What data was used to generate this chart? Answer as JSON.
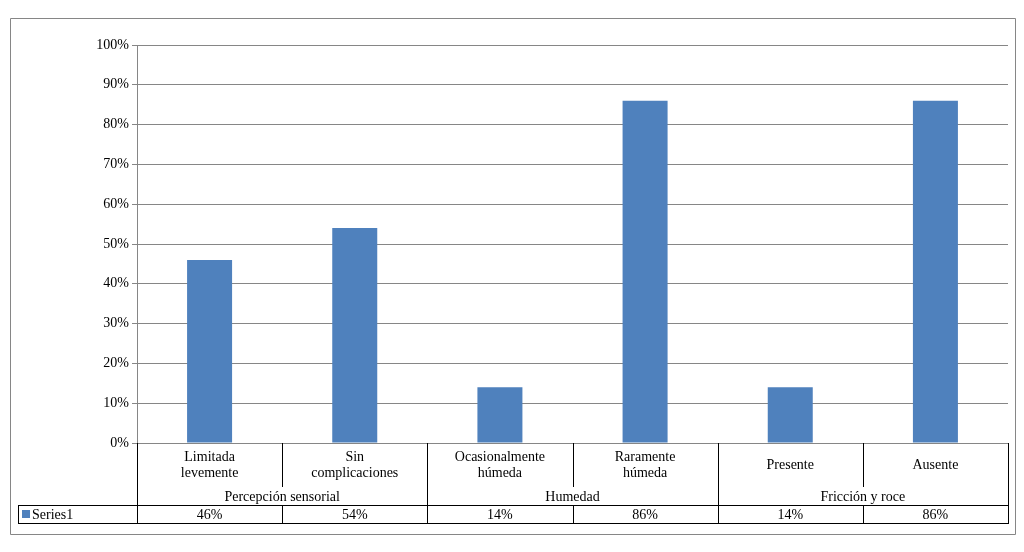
{
  "chart_data": {
    "type": "bar",
    "categories": [
      "Limitada levemente",
      "Sin complicaciones",
      "Ocasionalmente húmeda",
      "Raramente húmeda",
      "Presente",
      "Ausente"
    ],
    "series": [
      {
        "name": "Series1",
        "color": "#4f81bd",
        "values": [
          46,
          54,
          14,
          86,
          14,
          86
        ],
        "value_labels": [
          "46%",
          "54%",
          "14%",
          "86%",
          "14%",
          "86%"
        ]
      }
    ],
    "ylim": [
      0,
      100
    ],
    "yticks": [
      {
        "value": 0,
        "label": "0%"
      },
      {
        "value": 10,
        "label": "10%"
      },
      {
        "value": 20,
        "label": "20%"
      },
      {
        "value": 30,
        "label": "30%"
      },
      {
        "value": 40,
        "label": "40%"
      },
      {
        "value": 50,
        "label": "50%"
      },
      {
        "value": 60,
        "label": "60%"
      },
      {
        "value": 70,
        "label": "70%"
      },
      {
        "value": 80,
        "label": "80%"
      },
      {
        "value": 90,
        "label": "90%"
      },
      {
        "value": 100,
        "label": "100%"
      }
    ],
    "grid": "y",
    "legend": "bottom",
    "annotations": [
      "Percepción sensorial",
      "Humedad",
      "Fricción y roce"
    ]
  }
}
